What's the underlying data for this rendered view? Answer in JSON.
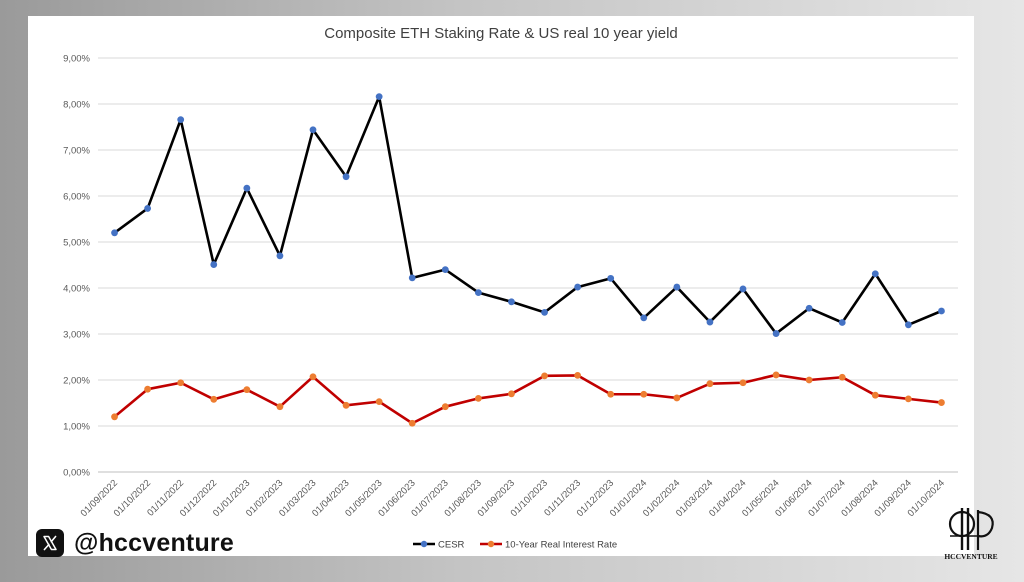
{
  "brand": {
    "platform_icon": "x-logo-icon",
    "handle": "@hccventure",
    "logo_text": "HCCVENTURE"
  },
  "chart_data": {
    "type": "line",
    "title": "Composite ETH Staking Rate & US real 10 year yield",
    "xlabel": "",
    "ylabel": "",
    "ylim": [
      0,
      9
    ],
    "yticks": [
      "0,00%",
      "1,00%",
      "2,00%",
      "3,00%",
      "4,00%",
      "5,00%",
      "6,00%",
      "7,00%",
      "8,00%",
      "9,00%"
    ],
    "grid": true,
    "legend_position": "bottom",
    "categories": [
      "01/09/2022",
      "01/10/2022",
      "01/11/2022",
      "01/12/2022",
      "01/01/2023",
      "01/02/2023",
      "01/03/2023",
      "01/04/2023",
      "01/05/2023",
      "01/06/2023",
      "01/07/2023",
      "01/08/2023",
      "01/09/2023",
      "01/10/2023",
      "01/11/2023",
      "01/12/2023",
      "01/01/2024",
      "01/02/2024",
      "01/03/2024",
      "01/04/2024",
      "01/05/2024",
      "01/06/2024",
      "01/07/2024",
      "01/08/2024",
      "01/09/2024",
      "01/10/2024"
    ],
    "series": [
      {
        "name": "CESR",
        "line_color": "#000000",
        "marker_color": "#4472C4",
        "values": [
          5.2,
          5.73,
          7.66,
          4.51,
          6.17,
          4.7,
          7.44,
          6.42,
          8.16,
          4.22,
          4.4,
          3.9,
          3.7,
          3.47,
          4.02,
          4.21,
          3.35,
          4.02,
          3.26,
          3.98,
          3.01,
          3.56,
          3.25,
          4.31,
          3.2,
          3.5
        ]
      },
      {
        "name": "10-Year Real Interest Rate",
        "line_color": "#C00000",
        "marker_color": "#ED7D31",
        "values": [
          1.2,
          1.8,
          1.94,
          1.58,
          1.79,
          1.42,
          2.07,
          1.45,
          1.53,
          1.06,
          1.42,
          1.6,
          1.7,
          2.09,
          2.1,
          1.69,
          1.69,
          1.61,
          1.92,
          1.94,
          2.11,
          2.0,
          2.06,
          1.67,
          1.59,
          1.51
        ]
      }
    ]
  }
}
